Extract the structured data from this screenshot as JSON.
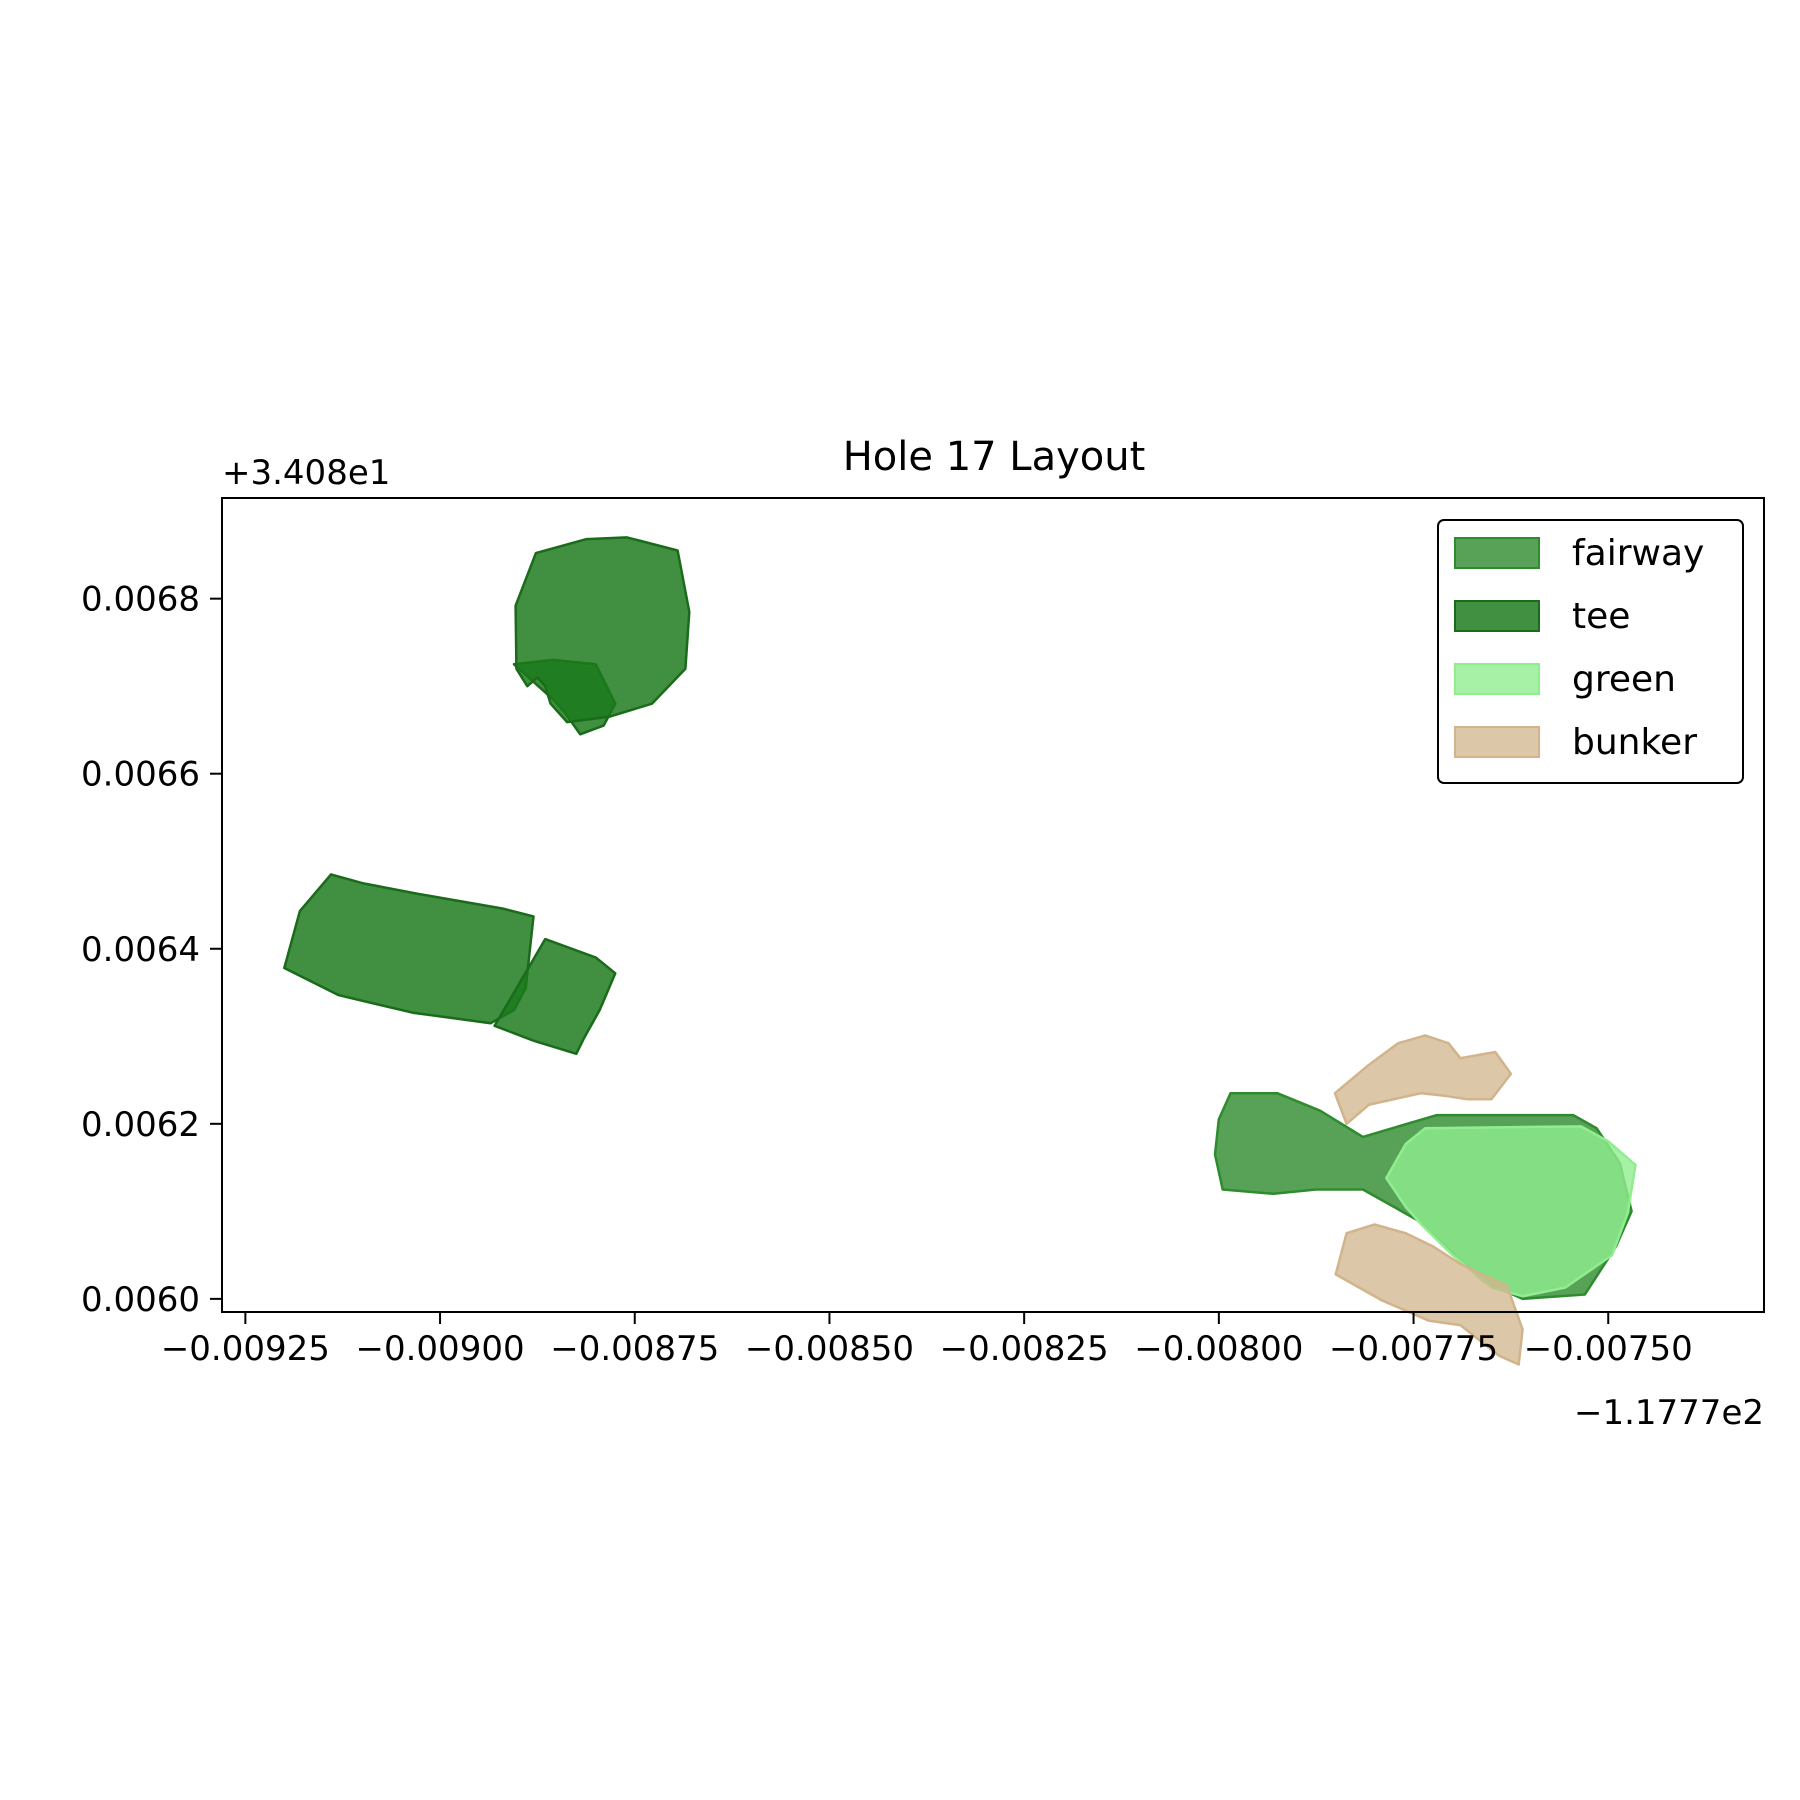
{
  "chart_data": {
    "type": "polygon-map",
    "title": "Hole 17 Layout",
    "xlabel": "",
    "ylabel": "",
    "x_offset_text": "−1.1777e2",
    "y_offset_text": "+3.408e1",
    "xlim": [
      -0.00928,
      -0.0073
    ],
    "ylim": [
      0.005985,
      0.006915
    ],
    "x_ticks": [
      -0.00925,
      -0.009,
      -0.00875,
      -0.0085,
      -0.00825,
      -0.008,
      -0.00775,
      -0.0075
    ],
    "x_tick_labels": [
      "−0.00925",
      "−0.00900",
      "−0.00875",
      "−0.00850",
      "−0.00825",
      "−0.00800",
      "−0.00775",
      "−0.00750"
    ],
    "y_ticks": [
      0.006,
      0.0062,
      0.0064,
      0.0066,
      0.0068
    ],
    "y_tick_labels": [
      "0.0060",
      "0.0062",
      "0.0064",
      "0.0066",
      "0.0068"
    ],
    "legend_position": "upper-right",
    "grid": false,
    "series": [
      {
        "name": "fairway",
        "fill": "#2e8b2e",
        "fill_opacity": 0.8,
        "stroke": "#2e8b2e",
        "polygons": [
          [
            [
              -0.007985,
              0.006235
            ],
            [
              -0.007925,
              0.006235
            ],
            [
              -0.00787,
              0.006215
            ],
            [
              -0.007815,
              0.006185
            ],
            [
              -0.00772,
              0.00621
            ],
            [
              -0.007545,
              0.00621
            ],
            [
              -0.007515,
              0.006195
            ],
            [
              -0.007485,
              0.006155
            ],
            [
              -0.00747,
              0.0061
            ],
            [
              -0.00749,
              0.00606
            ],
            [
              -0.00753,
              0.006005
            ],
            [
              -0.00761,
              0.006
            ],
            [
              -0.00766,
              0.00602
            ],
            [
              -0.007745,
              0.00609
            ],
            [
              -0.007815,
              0.006125
            ],
            [
              -0.007875,
              0.006125
            ],
            [
              -0.00793,
              0.00612
            ],
            [
              -0.007995,
              0.006125
            ],
            [
              -0.008005,
              0.006165
            ],
            [
              -0.008,
              0.006205
            ]
          ]
        ]
      },
      {
        "name": "tee",
        "fill": "#1a7a1a",
        "fill_opacity": 0.83,
        "stroke": "#1a6b1a",
        "polygons": [
          [
            [
              -0.008855,
              0.006685
            ],
            [
              -0.00884,
              0.00667
            ],
            [
              -0.00882,
              0.006645
            ],
            [
              -0.00879,
              0.006655
            ],
            [
              -0.008775,
              0.00668
            ],
            [
              -0.0088,
              0.006725
            ],
            [
              -0.008855,
              0.00673
            ],
            [
              -0.008905,
              0.006725
            ]
          ],
          [
            [
              -0.00876,
              0.00687
            ],
            [
              -0.008695,
              0.006855
            ],
            [
              -0.00868,
              0.006785
            ],
            [
              -0.008685,
              0.00672
            ],
            [
              -0.008728,
              0.00668
            ],
            [
              -0.008783,
              0.006665
            ],
            [
              -0.008837,
              0.006659
            ],
            [
              -0.008858,
              0.00668
            ],
            [
              -0.008865,
              0.0067
            ],
            [
              -0.008875,
              0.00671
            ],
            [
              -0.008888,
              0.0067
            ],
            [
              -0.008902,
              0.00672
            ],
            [
              -0.008903,
              0.006792
            ],
            [
              -0.008877,
              0.006852
            ],
            [
              -0.008812,
              0.006868
            ]
          ],
          [
            [
              -0.00914,
              0.006485
            ],
            [
              -0.0091,
              0.006475
            ],
            [
              -0.00903,
              0.006463
            ],
            [
              -0.00892,
              0.006446
            ],
            [
              -0.00888,
              0.006437
            ],
            [
              -0.00889,
              0.006355
            ],
            [
              -0.008905,
              0.00633
            ],
            [
              -0.008935,
              0.006315
            ],
            [
              -0.009035,
              0.006327
            ],
            [
              -0.00913,
              0.006347
            ],
            [
              -0.0092,
              0.006378
            ],
            [
              -0.00918,
              0.006443
            ]
          ],
          [
            [
              -0.008865,
              0.006411
            ],
            [
              -0.0088,
              0.00639
            ],
            [
              -0.008775,
              0.006372
            ],
            [
              -0.008795,
              0.00633
            ],
            [
              -0.008815,
              0.006298
            ],
            [
              -0.008825,
              0.00628
            ],
            [
              -0.00888,
              0.006295
            ],
            [
              -0.00893,
              0.006312
            ]
          ]
        ]
      },
      {
        "name": "green",
        "fill": "#90ee90",
        "fill_opacity": 0.8,
        "stroke": "#90ee90",
        "polygons": [
          [
            [
              -0.007735,
              0.006195
            ],
            [
              -0.007535,
              0.006197
            ],
            [
              -0.0075,
              0.00618
            ],
            [
              -0.007465,
              0.006153
            ],
            [
              -0.007475,
              0.006098
            ],
            [
              -0.007495,
              0.00605
            ],
            [
              -0.007555,
              0.006013
            ],
            [
              -0.00761,
              0.006003
            ],
            [
              -0.00765,
              0.006013
            ],
            [
              -0.0077,
              0.00605
            ],
            [
              -0.00774,
              0.006085
            ],
            [
              -0.00776,
              0.006105
            ],
            [
              -0.007785,
              0.006138
            ],
            [
              -0.00776,
              0.006177
            ]
          ]
        ]
      },
      {
        "name": "bunker",
        "fill": "#d2b48c",
        "fill_opacity": 0.75,
        "stroke": "#d2b48c",
        "polygons": [
          [
            [
              -0.007807,
              0.006222
            ],
            [
              -0.00774,
              0.006235
            ],
            [
              -0.00771,
              0.006232
            ],
            [
              -0.00768,
              0.006228
            ],
            [
              -0.00765,
              0.006228
            ],
            [
              -0.007625,
              0.006257
            ],
            [
              -0.007645,
              0.006282
            ],
            [
              -0.00769,
              0.006275
            ],
            [
              -0.007705,
              0.006292
            ],
            [
              -0.007735,
              0.006301
            ],
            [
              -0.00777,
              0.006292
            ],
            [
              -0.007808,
              0.006267
            ],
            [
              -0.007851,
              0.006235
            ],
            [
              -0.007836,
              0.0062
            ]
          ],
          [
            [
              -0.00785,
              0.006028
            ],
            [
              -0.00779,
              0.005998
            ],
            [
              -0.00773,
              0.005975
            ],
            [
              -0.00769,
              0.00597
            ],
            [
              -0.00764,
              0.005935
            ],
            [
              -0.007615,
              0.005925
            ],
            [
              -0.00761,
              0.005965
            ],
            [
              -0.00763,
              0.006015
            ],
            [
              -0.00766,
              0.006027
            ],
            [
              -0.00769,
              0.00604
            ],
            [
              -0.007725,
              0.00606
            ],
            [
              -0.00776,
              0.006075
            ],
            [
              -0.0078,
              0.006085
            ],
            [
              -0.007836,
              0.006075
            ]
          ]
        ]
      }
    ]
  }
}
